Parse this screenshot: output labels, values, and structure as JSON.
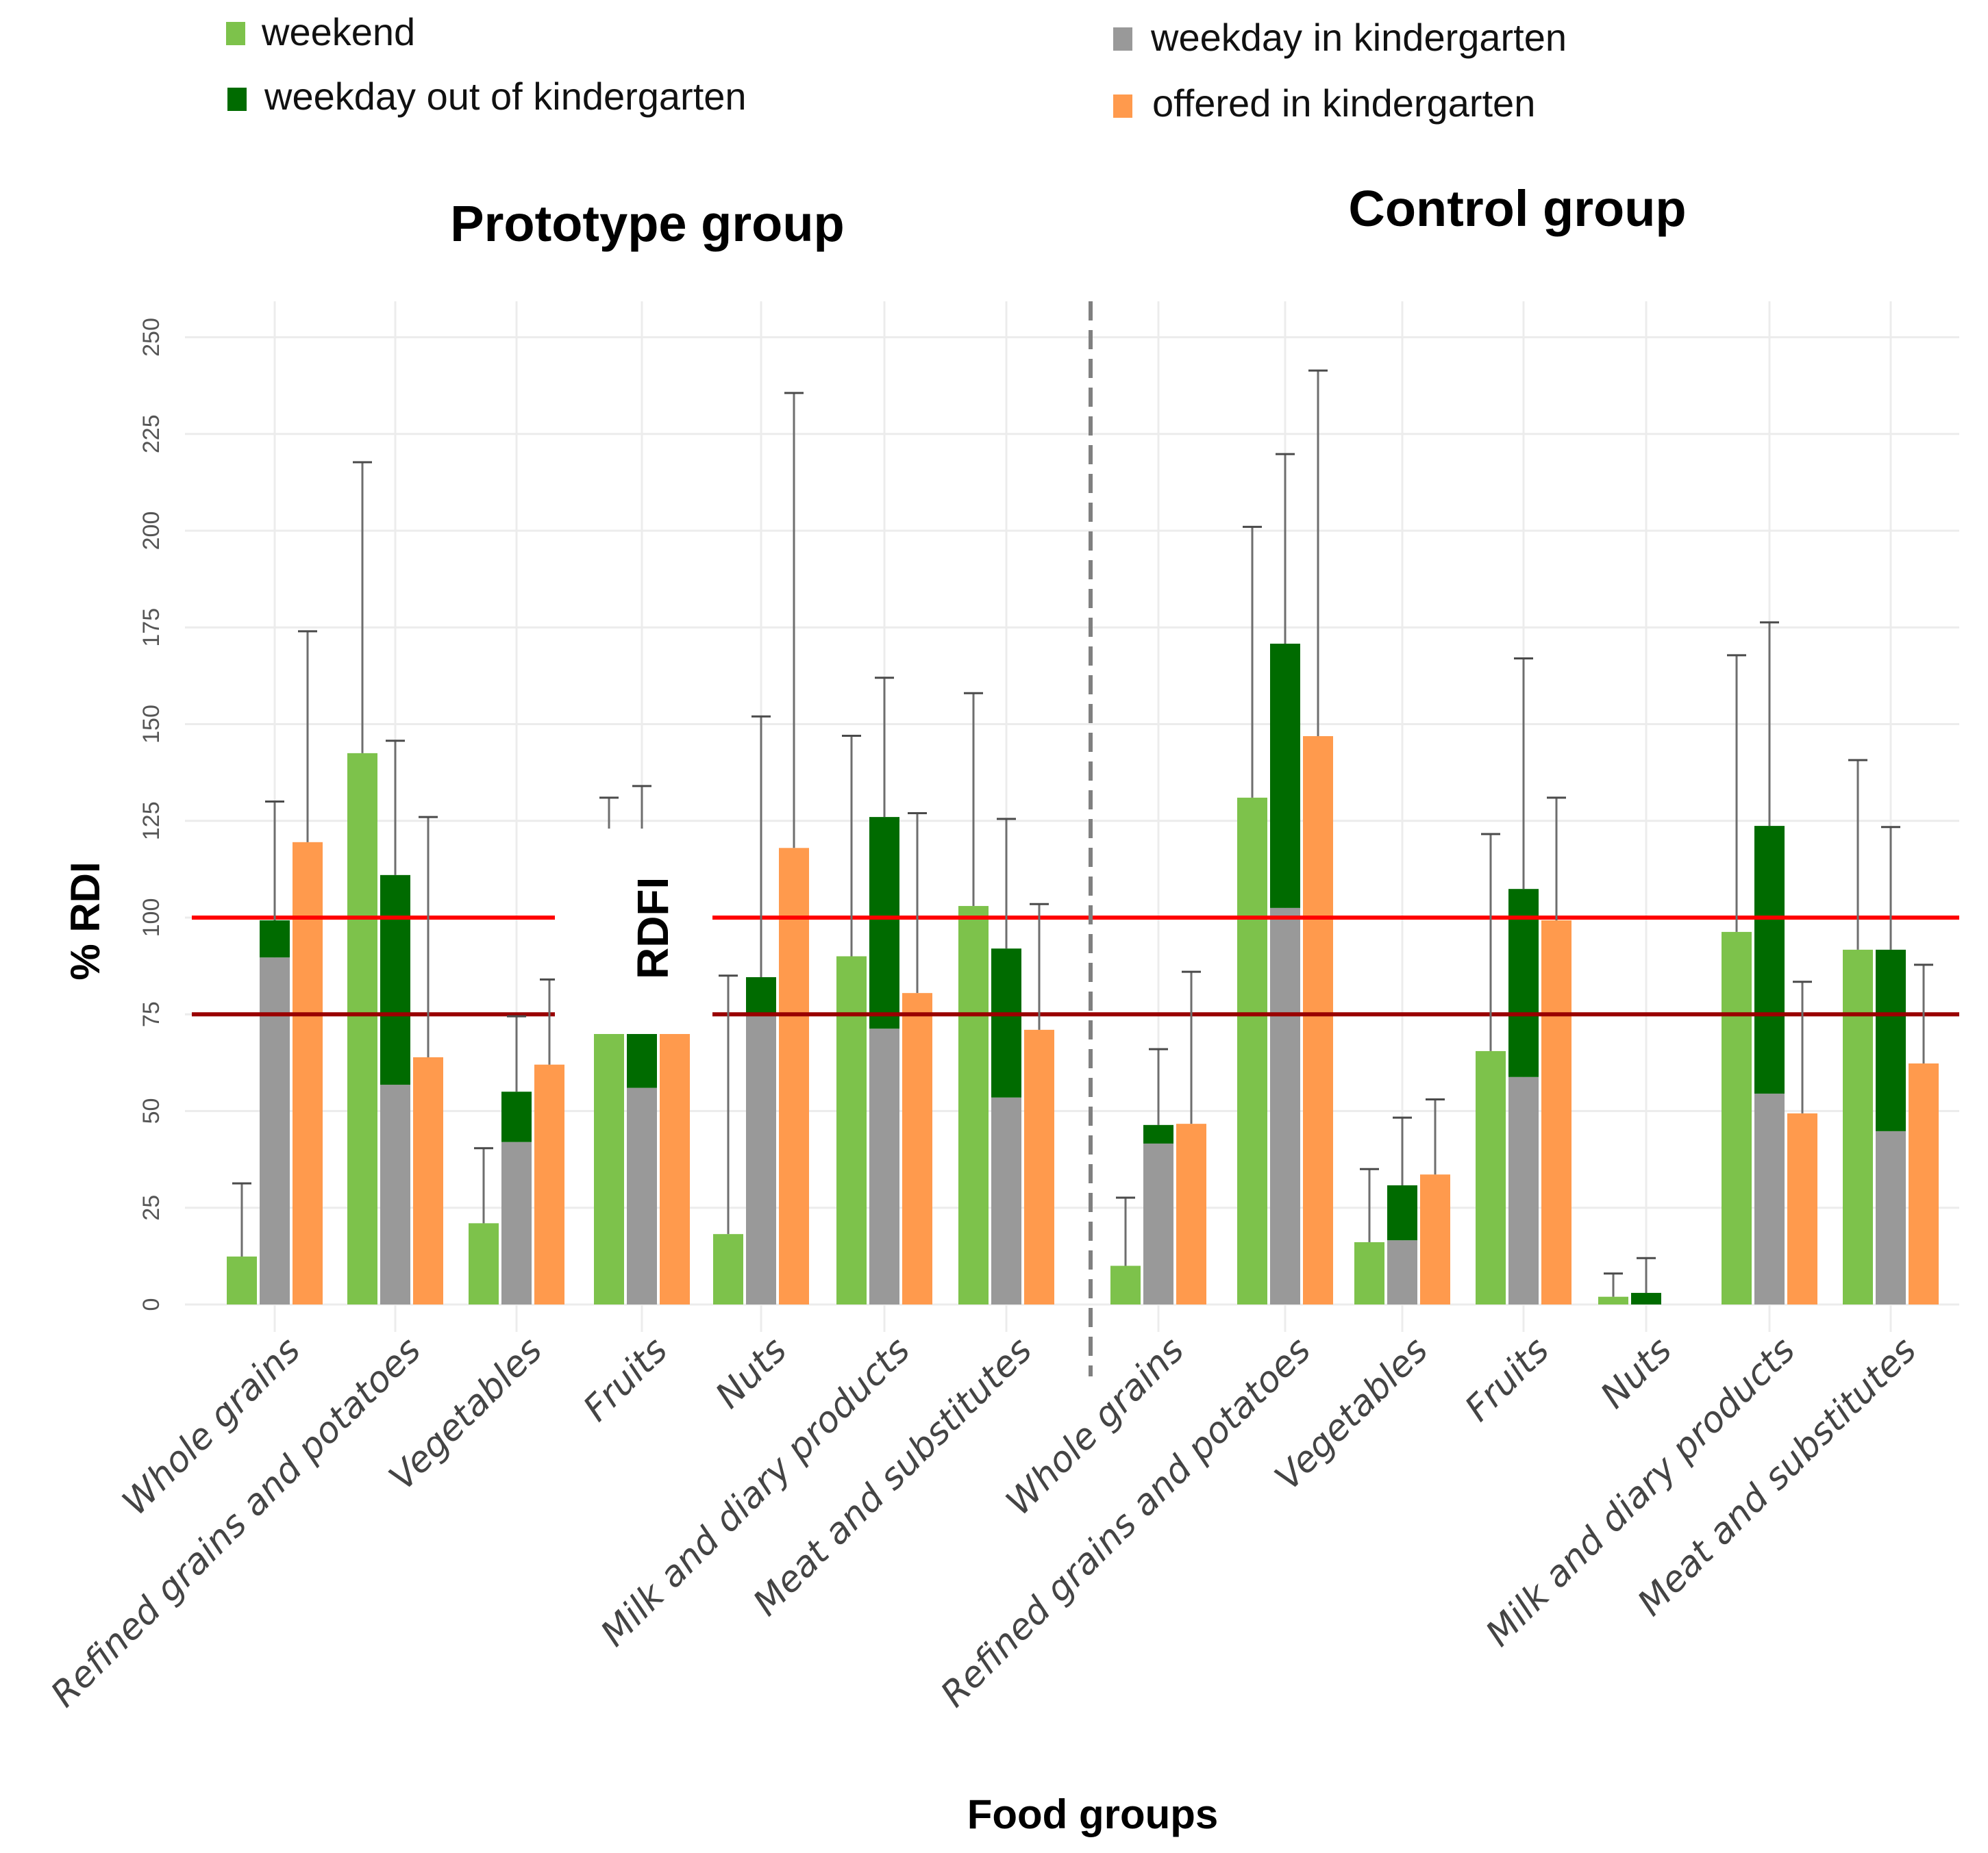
{
  "chart_data": {
    "type": "bar",
    "subtype": "grouped-stacked-with-errorbars",
    "xlabel": "Food groups",
    "ylabel": "% RDI",
    "ylim": [
      0,
      250
    ],
    "yticks": [
      0,
      25,
      50,
      75,
      100,
      125,
      150,
      175,
      200,
      225,
      250
    ],
    "grid": true,
    "reference_lines": [
      {
        "value": 100,
        "color": "#ff0000"
      },
      {
        "value": 75,
        "color": "#990000"
      }
    ],
    "reference_label": "RDFI",
    "legend": {
      "placement": "top",
      "entries": [
        {
          "key": "weekend",
          "label": "weekend",
          "color": "#7dc24b"
        },
        {
          "key": "weekday_out",
          "label": "weekday out of kindergarten",
          "color": "#006b00"
        },
        {
          "key": "weekday_in",
          "label": "weekday in kindergarten",
          "color": "#999999"
        },
        {
          "key": "offered",
          "label": "offered in kindergarten",
          "color": "#ff9a4d"
        }
      ]
    },
    "categories": [
      "Whole grains",
      "Refined grains and potatoes",
      "Vegetables",
      "Fruits",
      "Nuts",
      "Milk and diary products",
      "Meat and substitutes"
    ],
    "panels": [
      {
        "title": "Prototype group",
        "weekend": {
          "values": [
            12.4,
            142.5,
            21,
            76.6,
            18.2,
            90,
            103
          ],
          "error_upper": [
            31.3,
            217.7,
            40.4,
            131,
            85,
            147,
            158
          ]
        },
        "weekday_in": {
          "values": [
            89.7,
            56.8,
            42,
            56,
            74.5,
            71.3,
            53.5
          ]
        },
        "weekday_total": {
          "values": [
            99.3,
            111,
            55,
            78,
            84.6,
            126,
            92
          ],
          "error_upper": [
            130,
            145.7,
            74.5,
            134,
            152,
            162,
            125.5
          ]
        },
        "offered": {
          "values": [
            119.5,
            63.9,
            62,
            71.7,
            118,
            80.5,
            71
          ],
          "error_upper": [
            174,
            126,
            84,
            78,
            235.6,
            127,
            103.5
          ]
        }
      },
      {
        "title": "Control group",
        "weekend": {
          "values": [
            10,
            131,
            16.1,
            65.5,
            2,
            96.3,
            91.7
          ],
          "error_upper": [
            27.6,
            201,
            35,
            121.6,
            8,
            167.8,
            140.7
          ]
        },
        "weekday_in": {
          "values": [
            41.6,
            102.5,
            16.6,
            58.8,
            0,
            54.5,
            44.8
          ]
        },
        "weekday_total": {
          "values": [
            46.4,
            170.8,
            30.8,
            107.4,
            3,
            123.7,
            91.7
          ],
          "error_upper": [
            66,
            219.8,
            48.3,
            167,
            12,
            176.3,
            123.4
          ]
        },
        "offered": {
          "values": [
            46.7,
            146.9,
            33.6,
            99.3,
            null,
            49.4,
            62.3
          ],
          "error_upper": [
            86,
            241.4,
            53,
            131,
            null,
            83.4,
            87.8
          ]
        }
      }
    ]
  }
}
